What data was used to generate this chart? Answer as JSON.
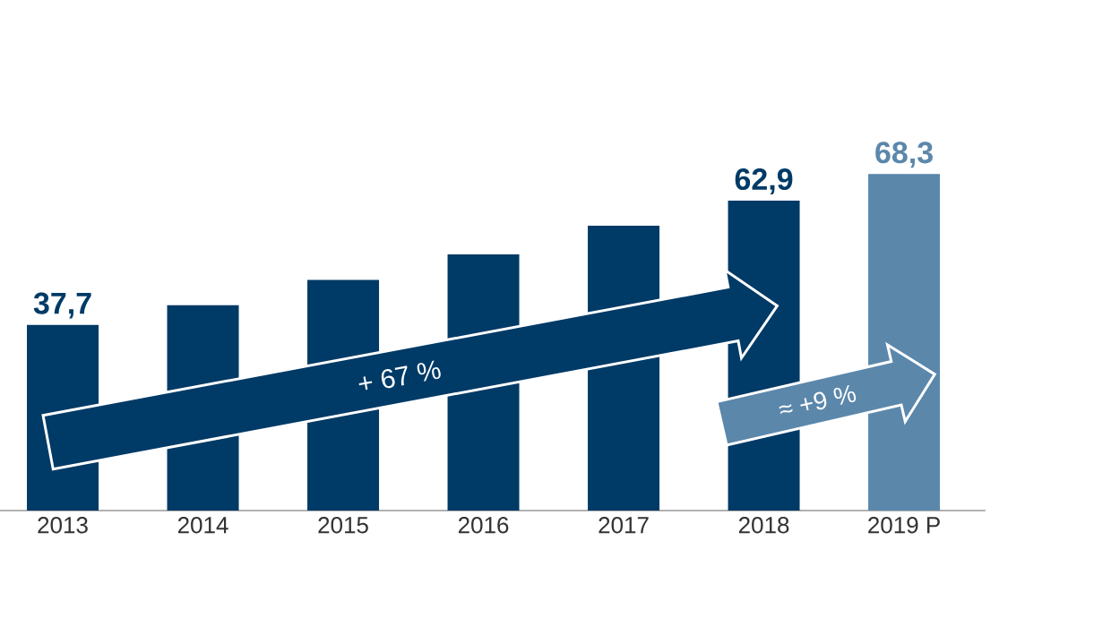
{
  "chart_data": {
    "type": "bar",
    "categories": [
      "2013",
      "2014",
      "2015",
      "2016",
      "2017",
      "2018",
      "2019 P"
    ],
    "values": [
      37.7,
      41.7,
      46.8,
      52.0,
      57.8,
      62.9,
      68.3
    ],
    "value_labels": [
      "37,7",
      null,
      null,
      null,
      null,
      "62,9",
      "68,3"
    ],
    "colors": [
      "#003a66",
      "#003a66",
      "#003a66",
      "#003a66",
      "#003a66",
      "#003a66",
      "#5b87ab"
    ],
    "tick_labels": "x",
    "annotations": [
      "+ 67 %",
      "≈ +9 %"
    ]
  }
}
